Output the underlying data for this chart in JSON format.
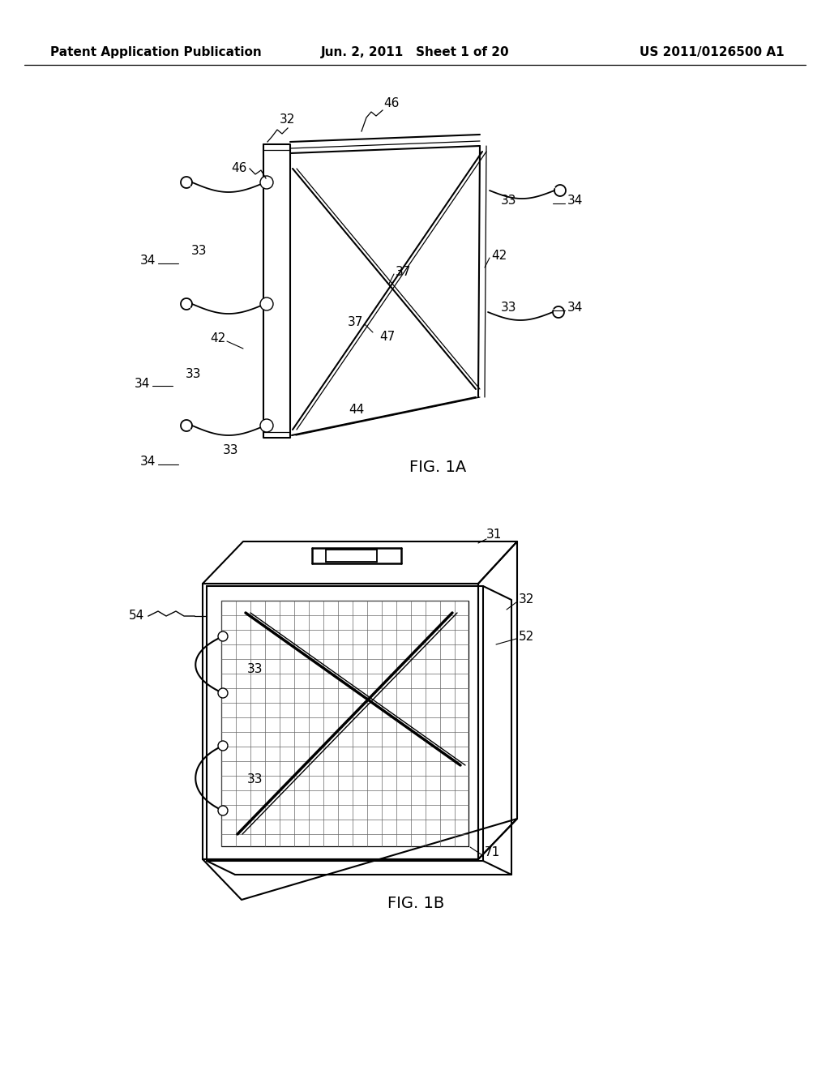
{
  "bg_color": "#ffffff",
  "line_color": "#000000",
  "header_left": "Patent Application Publication",
  "header_mid": "Jun. 2, 2011   Sheet 1 of 20",
  "header_right": "US 2011/0126500 A1",
  "fig1a_label": "FIG. 1A",
  "fig1b_label": "FIG. 1B",
  "font_size_header": 11,
  "font_size_labels": 11,
  "font_size_fig": 14
}
